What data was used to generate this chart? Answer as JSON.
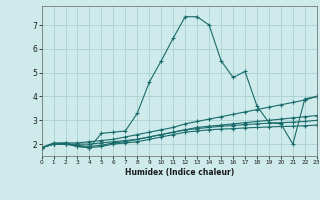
{
  "bg_color": "#ceeaea",
  "grid_color": "#aad0d0",
  "line_color": "#1a6b6b",
  "xlabel": "Humidex (Indice chaleur)",
  "xlim": [
    0,
    23
  ],
  "ylim": [
    1.5,
    7.8
  ],
  "xticks": [
    0,
    1,
    2,
    3,
    4,
    5,
    6,
    7,
    8,
    9,
    10,
    11,
    12,
    13,
    14,
    15,
    16,
    17,
    18,
    19,
    20,
    21,
    22,
    23
  ],
  "yticks": [
    2,
    3,
    4,
    5,
    6,
    7
  ],
  "series1_x": [
    0,
    1,
    2,
    3,
    4,
    5,
    6,
    7,
    8,
    9,
    10,
    11,
    12,
    13,
    14,
    15,
    16,
    17,
    18,
    19,
    20,
    21,
    22,
    23
  ],
  "series1_y": [
    1.85,
    2.05,
    2.05,
    1.9,
    1.85,
    2.45,
    2.5,
    2.55,
    3.3,
    4.6,
    5.5,
    6.45,
    7.35,
    7.35,
    7.0,
    5.5,
    4.8,
    5.05,
    3.6,
    2.9,
    2.85,
    2.0,
    3.9,
    4.0
  ],
  "series2_x": [
    0,
    1,
    2,
    3,
    4,
    5,
    6,
    7,
    8,
    9,
    10,
    11,
    12,
    13,
    14,
    15,
    16,
    17,
    18,
    19,
    20,
    21,
    22,
    23
  ],
  "series2_y": [
    1.85,
    2.0,
    2.05,
    2.05,
    2.1,
    2.15,
    2.2,
    2.3,
    2.4,
    2.5,
    2.6,
    2.7,
    2.85,
    2.95,
    3.05,
    3.15,
    3.25,
    3.35,
    3.45,
    3.55,
    3.65,
    3.75,
    3.85,
    4.0
  ],
  "series3_x": [
    0,
    1,
    2,
    3,
    4,
    5,
    6,
    7,
    8,
    9,
    10,
    11,
    12,
    13,
    14,
    15,
    16,
    17,
    18,
    19,
    20,
    21,
    22,
    23
  ],
  "series3_y": [
    1.85,
    2.0,
    2.0,
    2.0,
    2.0,
    2.05,
    2.1,
    2.15,
    2.2,
    2.3,
    2.4,
    2.5,
    2.6,
    2.7,
    2.75,
    2.8,
    2.85,
    2.9,
    2.95,
    3.0,
    3.05,
    3.1,
    3.15,
    3.2
  ],
  "series4_x": [
    0,
    1,
    2,
    3,
    4,
    5,
    6,
    7,
    8,
    9,
    10,
    11,
    12,
    13,
    14,
    15,
    16,
    17,
    18,
    19,
    20,
    21,
    22,
    23
  ],
  "series4_y": [
    1.85,
    2.0,
    2.0,
    1.95,
    1.9,
    1.95,
    2.05,
    2.1,
    2.2,
    2.3,
    2.4,
    2.5,
    2.6,
    2.65,
    2.7,
    2.75,
    2.78,
    2.82,
    2.85,
    2.88,
    2.9,
    2.92,
    2.95,
    3.0
  ],
  "series5_x": [
    0,
    1,
    2,
    3,
    4,
    5,
    6,
    7,
    8,
    9,
    10,
    11,
    12,
    13,
    14,
    15,
    16,
    17,
    18,
    19,
    20,
    21,
    22,
    23
  ],
  "series5_y": [
    1.85,
    2.0,
    2.0,
    1.9,
    1.85,
    1.9,
    2.0,
    2.05,
    2.1,
    2.2,
    2.3,
    2.4,
    2.5,
    2.55,
    2.6,
    2.63,
    2.65,
    2.68,
    2.7,
    2.72,
    2.74,
    2.75,
    2.77,
    2.8
  ]
}
